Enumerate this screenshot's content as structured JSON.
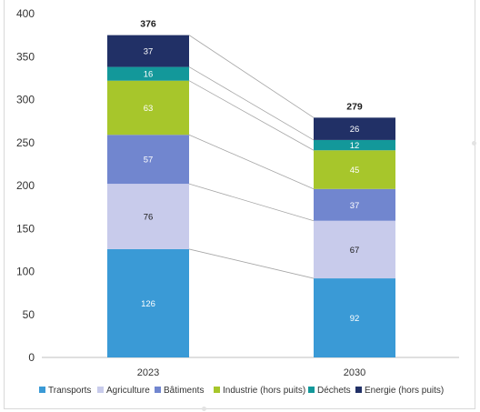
{
  "chart_data": {
    "type": "bar",
    "stacked": true,
    "categories": [
      "2023",
      "2030"
    ],
    "series": [
      {
        "name": "Transports",
        "color": "#3a9ad6",
        "values": [
          126,
          92
        ]
      },
      {
        "name": "Agriculture",
        "color": "#c8cbeb",
        "values": [
          76,
          67
        ]
      },
      {
        "name": "Bâtiments",
        "color": "#7186cf",
        "values": [
          57,
          37
        ]
      },
      {
        "name": "Industrie (hors puits)",
        "color": "#a7c62b",
        "values": [
          63,
          45
        ]
      },
      {
        "name": "Déchets",
        "color": "#13989a",
        "values": [
          16,
          12
        ]
      },
      {
        "name": "Energie (hors puits)",
        "color": "#213066",
        "values": [
          37,
          26
        ]
      }
    ],
    "totals": [
      "376",
      "279"
    ],
    "ylim": [
      0,
      400
    ],
    "yticks": [
      0,
      50,
      100,
      150,
      200,
      250,
      300,
      350,
      400
    ],
    "grid": false,
    "legend_position": "bottom",
    "connector_lines": true
  }
}
